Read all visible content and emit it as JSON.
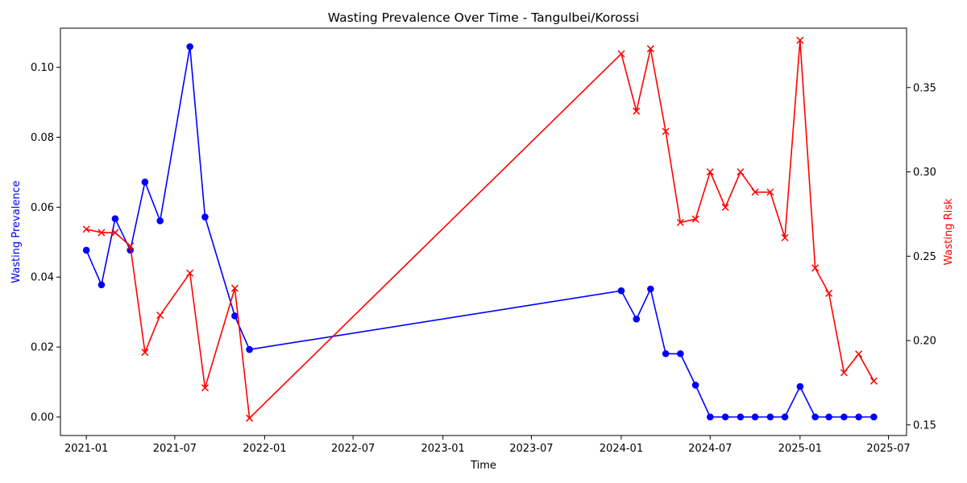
{
  "chart_data": {
    "type": "line",
    "title": "Wasting Prevalence Over Time - Tangulbei/Korossi",
    "xlabel": "Time",
    "ylabel_left": "Wasting Prevalence",
    "ylabel_right": "Wasting Risk",
    "x_ticks": [
      "2021-01",
      "2021-07",
      "2022-01",
      "2022-07",
      "2023-01",
      "2023-07",
      "2024-01",
      "2024-07",
      "2025-01",
      "2025-07"
    ],
    "y_left_ticks": [
      "0.00",
      "0.02",
      "0.04",
      "0.06",
      "0.08",
      "0.10"
    ],
    "y_right_ticks": [
      "0.15",
      "0.20",
      "0.25",
      "0.30",
      "0.35"
    ],
    "xlim": [
      "2020-11-09",
      "2025-08-07"
    ],
    "ylim_left": [
      -0.0053,
      0.1112
    ],
    "ylim_right": [
      0.1437,
      0.3852
    ],
    "grid": false,
    "series": [
      {
        "axis": "left",
        "color": "#0000ff",
        "marker": "circle",
        "x": [
          "2021-01-01",
          "2021-02-01",
          "2021-03-01",
          "2021-04-01",
          "2021-05-01",
          "2021-06-01",
          "2021-08-01",
          "2021-09-01",
          "2021-11-01",
          "2021-12-01",
          "2024-01-01",
          "2024-02-01",
          "2024-03-01",
          "2024-04-01",
          "2024-05-01",
          "2024-06-01",
          "2024-07-01",
          "2024-08-01",
          "2024-09-01",
          "2024-10-01",
          "2024-11-01",
          "2024-12-01",
          "2025-01-01",
          "2025-02-01",
          "2025-03-01",
          "2025-04-01",
          "2025-05-01",
          "2025-06-01"
        ],
        "values": [
          0.0477,
          0.0378,
          0.0567,
          0.0477,
          0.0672,
          0.0561,
          0.1059,
          0.0572,
          0.0289,
          0.0193,
          0.0361,
          0.028,
          0.0366,
          0.0181,
          0.0181,
          0.0091,
          0,
          0,
          0,
          0,
          0,
          0,
          0.0087,
          0,
          0,
          0,
          0,
          0
        ]
      },
      {
        "axis": "right",
        "color": "#ff0000",
        "marker": "x",
        "x": [
          "2021-01-01",
          "2021-02-01",
          "2021-03-01",
          "2021-04-01",
          "2021-05-01",
          "2021-06-01",
          "2021-08-01",
          "2021-09-01",
          "2021-11-01",
          "2021-12-01",
          "2024-01-01",
          "2024-02-01",
          "2024-03-01",
          "2024-04-01",
          "2024-05-01",
          "2024-06-01",
          "2024-07-01",
          "2024-08-01",
          "2024-09-01",
          "2024-10-01",
          "2024-11-01",
          "2024-12-01",
          "2025-01-01",
          "2025-02-01",
          "2025-03-01",
          "2025-04-01",
          "2025-05-01",
          "2025-06-01"
        ],
        "values": [
          0.266,
          0.264,
          0.264,
          0.256,
          0.193,
          0.215,
          0.24,
          0.172,
          0.231,
          0.154,
          0.37,
          0.336,
          0.373,
          0.324,
          0.27,
          0.272,
          0.3,
          0.279,
          0.3,
          0.288,
          0.288,
          0.261,
          0.378,
          0.243,
          0.228,
          0.181,
          0.192,
          0.176
        ]
      }
    ]
  }
}
